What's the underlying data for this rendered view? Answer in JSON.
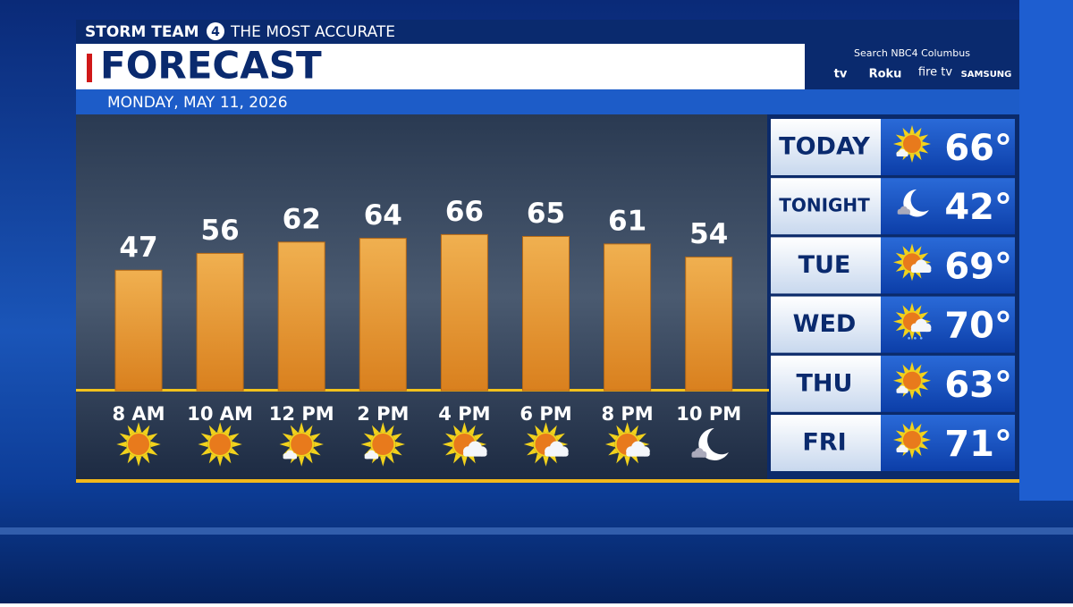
{
  "header": {
    "brand": "STORM TEAM",
    "brand_number": "4",
    "tagline": "THE MOST ACCURATE",
    "title": "FORECAST",
    "date": "MONDAY, MAY 11, 2026",
    "promo": "Search NBC4 Columbus",
    "platforms": [
      "tv",
      "Roku",
      "fire tv",
      "SAMSUNG"
    ]
  },
  "chart_data": {
    "type": "bar",
    "categories": [
      "8 AM",
      "10 AM",
      "12 PM",
      "2 PM",
      "4 PM",
      "6 PM",
      "8 PM",
      "10 PM"
    ],
    "values": [
      47,
      56,
      62,
      64,
      66,
      65,
      61,
      54
    ],
    "color": "#e0952f"
  },
  "daily": [
    {
      "day": "TODAY",
      "temp": "66°"
    },
    {
      "day": "TONIGHT",
      "temp": "42°"
    },
    {
      "day": "TUE",
      "temp": "69°"
    },
    {
      "day": "WED",
      "temp": "70°"
    },
    {
      "day": "THU",
      "temp": "63°"
    },
    {
      "day": "FRI",
      "temp": "71°"
    }
  ]
}
